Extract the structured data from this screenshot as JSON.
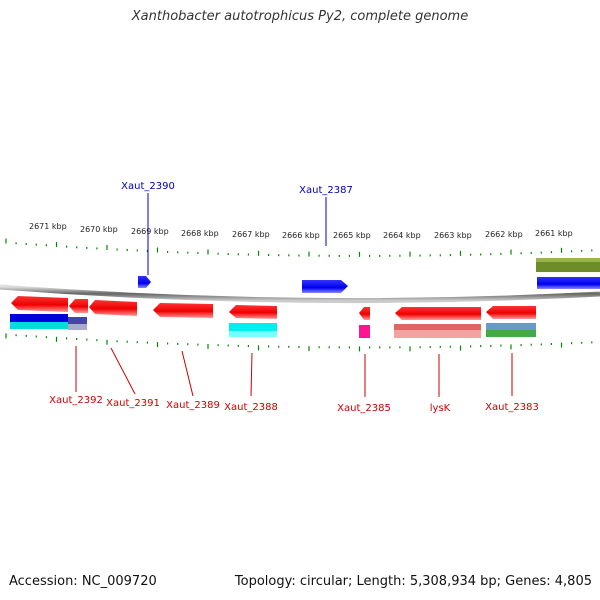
{
  "header": {
    "title": "Xanthobacter autotrophicus Py2, complete genome"
  },
  "footer": {
    "accession": "Accession: NC_009720",
    "summary": "Topology: circular; Length: 5,308,934 bp; Genes: 4,805"
  },
  "colors": {
    "forward_label": "#0000bb",
    "reverse_label": "#cc0000",
    "tick": "#008800",
    "backbone": "#888888"
  },
  "scale": {
    "tick_labels": [
      "2671 kbp",
      "2670 kbp",
      "2669 kbp",
      "2668 kbp",
      "2667 kbp",
      "2666 kbp",
      "2665 kbp",
      "2664 kbp",
      "2663 kbp",
      "2662 kbp",
      "2661 kbp"
    ]
  },
  "genes": {
    "forward_labels": [
      "Xaut_2390",
      "Xaut_2387"
    ],
    "reverse_labels": [
      "Xaut_2392",
      "Xaut_2391",
      "Xaut_2389",
      "Xaut_2388",
      "Xaut_2385",
      "lysK",
      "Xaut_2383"
    ]
  }
}
